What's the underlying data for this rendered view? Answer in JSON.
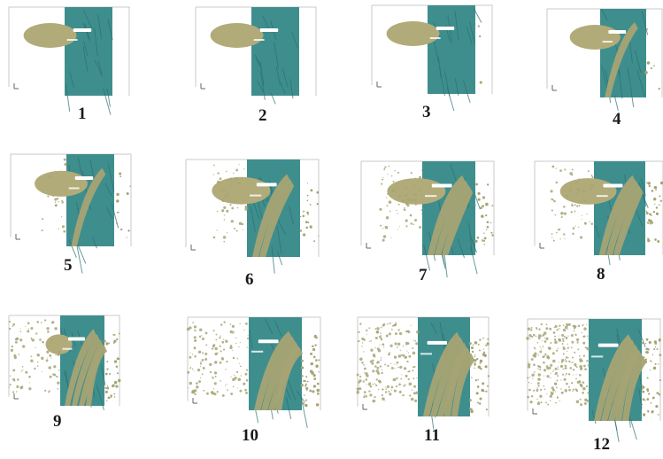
{
  "figure": {
    "colors": {
      "target": "#3f8e8e",
      "target_dark": "#2d6f72",
      "debris": "#a7a474",
      "projectile": "#b1ab79",
      "highlight": "#ffffff",
      "frame_line": "#c9c9c9"
    },
    "panels": [
      {
        "label": "1",
        "debris": 0.0,
        "projectile": "full",
        "cloud": 0
      },
      {
        "label": "2",
        "debris": 0.0,
        "projectile": "full",
        "cloud": 0
      },
      {
        "label": "3",
        "debris": 0.05,
        "projectile": "full",
        "cloud": 0
      },
      {
        "label": "4",
        "debris": 0.1,
        "projectile": "partial",
        "cloud": 0
      },
      {
        "label": "5",
        "debris": 0.2,
        "projectile": "partial",
        "cloud": 1
      },
      {
        "label": "6",
        "debris": 0.35,
        "projectile": "partial",
        "cloud": 2
      },
      {
        "label": "7",
        "debris": 0.45,
        "projectile": "partial",
        "cloud": 3
      },
      {
        "label": "8",
        "debris": 0.5,
        "projectile": "partial",
        "cloud": 3
      },
      {
        "label": "9",
        "debris": 0.6,
        "projectile": "small",
        "cloud": 4
      },
      {
        "label": "10",
        "debris": 0.7,
        "projectile": "none",
        "cloud": 6
      },
      {
        "label": "11",
        "debris": 0.8,
        "projectile": "none",
        "cloud": 9
      },
      {
        "label": "12",
        "debris": 0.9,
        "projectile": "none",
        "cloud": 12
      }
    ]
  }
}
